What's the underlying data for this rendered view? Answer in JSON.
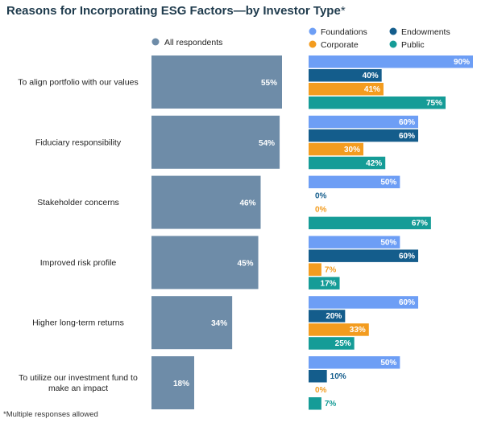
{
  "chart_data": {
    "type": "bar",
    "orientation": "horizontal",
    "title": "Reasons for Incorporating ESG Factors—by Investor Type",
    "title_mark": "*",
    "footnote": "*Multiple responses allowed",
    "categories": [
      [
        "To align portfolio with our values"
      ],
      [
        "Fiduciary responsibility"
      ],
      [
        "Stakeholder concerns"
      ],
      [
        "Improved risk profile"
      ],
      [
        "Higher long-term returns"
      ],
      [
        "To utilize our investment fund to",
        "make an impact"
      ]
    ],
    "overall": {
      "name": "All respondents",
      "color": "#6e8ca8",
      "values": [
        55,
        54,
        46,
        45,
        34,
        18
      ]
    },
    "series": [
      {
        "name": "Foundations",
        "color": "#6d9ef5",
        "values": [
          90,
          60,
          50,
          50,
          60,
          50
        ]
      },
      {
        "name": "Endowments",
        "color": "#145d8c",
        "values": [
          40,
          60,
          0,
          60,
          20,
          10
        ]
      },
      {
        "name": "Corporate",
        "color": "#f39c1f",
        "values": [
          41,
          30,
          0,
          7,
          33,
          0
        ]
      },
      {
        "name": "Public",
        "color": "#159c97",
        "values": [
          75,
          42,
          67,
          17,
          25,
          7
        ]
      }
    ],
    "value_suffix": "%",
    "xlim": [
      0,
      100
    ],
    "legend_position": "top-right",
    "grid": false
  }
}
